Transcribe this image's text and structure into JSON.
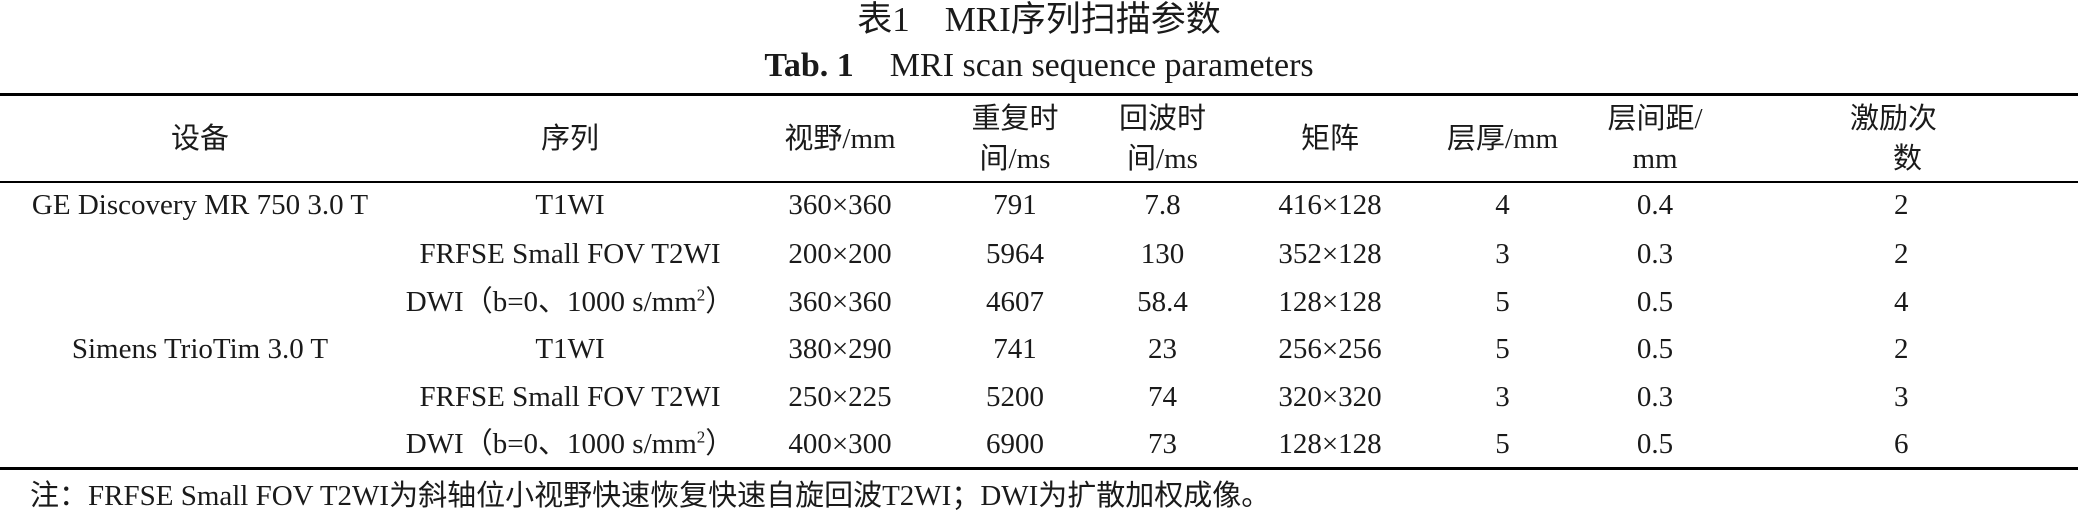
{
  "title_cn": "表1　MRI序列扫描参数",
  "title_en_no": "Tab. 1",
  "title_en": "MRI scan sequence parameters",
  "headers": {
    "device": "设备",
    "sequence": "序列",
    "fov": "视野/mm",
    "tr_1": "重复时",
    "tr_2": "间/ms",
    "te_1": "回波时",
    "te_2": "间/ms",
    "matrix": "矩阵",
    "thickness": "层厚/mm",
    "gap_1": "层间距/",
    "gap_2": "mm",
    "nex_1": "激励次",
    "nex_2": "数"
  },
  "rows": [
    {
      "device": "GE Discovery MR 750 3.0 T",
      "sequence": "T1WI",
      "fov": "360×360",
      "tr": "791",
      "te": "7.8",
      "matrix": "416×128",
      "thickness": "4",
      "gap": "0.4",
      "nex": "2"
    },
    {
      "device": "",
      "sequence": "FRFSE Small FOV T2WI",
      "fov": "200×200",
      "tr": "5964",
      "te": "130",
      "matrix": "352×128",
      "thickness": "3",
      "gap": "0.3",
      "nex": "2"
    },
    {
      "device": "",
      "sequence": "DWI（b=0、1000 s/mm",
      "sequence_sup": "2",
      "sequence_end": "）",
      "fov": "360×360",
      "tr": "4607",
      "te": "58.4",
      "matrix": "128×128",
      "thickness": "5",
      "gap": "0.5",
      "nex": "4"
    },
    {
      "device": "Simens TrioTim 3.0 T",
      "sequence": "T1WI",
      "fov": "380×290",
      "tr": "741",
      "te": "23",
      "matrix": "256×256",
      "thickness": "5",
      "gap": "0.5",
      "nex": "2"
    },
    {
      "device": "",
      "sequence": "FRFSE Small FOV T2WI",
      "fov": "250×225",
      "tr": "5200",
      "te": "74",
      "matrix": "320×320",
      "thickness": "3",
      "gap": "0.3",
      "nex": "3"
    },
    {
      "device": "",
      "sequence": "DWI（b=0、1000 s/mm",
      "sequence_sup": "2",
      "sequence_end": "）",
      "fov": "400×300",
      "tr": "6900",
      "te": "73",
      "matrix": "128×128",
      "thickness": "5",
      "gap": "0.5",
      "nex": "6"
    }
  ],
  "note": "注：FRFSE Small FOV T2WI为斜轴位小视野快速恢复快速自旋回波T2WI；DWI为扩散加权成像。"
}
